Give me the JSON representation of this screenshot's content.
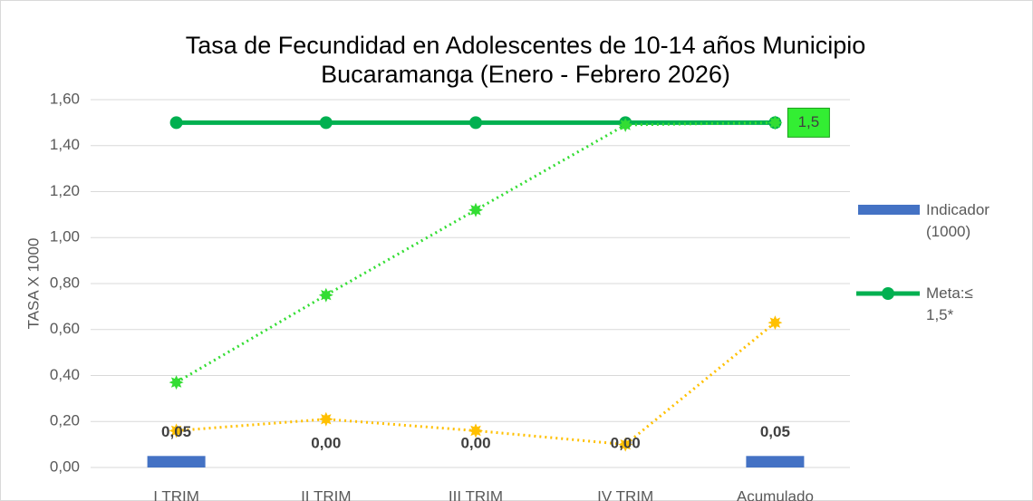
{
  "chart_data": {
    "type": "line",
    "title": "Tasa de Fecundidad en Adolescentes de 10-14 años Municipio Bucaramanga (Enero - Febrero 2026)",
    "y_label": "TASA X 1000",
    "categories": [
      "I TRIM",
      "II TRIM",
      "III TRIM",
      "IV TRIM",
      "Acumulado"
    ],
    "ylim": [
      0,
      1.6
    ],
    "yticks": [
      {
        "value": 0,
        "label": "0,00"
      },
      {
        "value": 0.2,
        "label": "0,20"
      },
      {
        "value": 0.4,
        "label": "0,40"
      },
      {
        "value": 0.6,
        "label": "0,60"
      },
      {
        "value": 0.8,
        "label": "0,80"
      },
      {
        "value": 1.0,
        "label": "1,00"
      },
      {
        "value": 1.2,
        "label": "1,20"
      },
      {
        "value": 1.4,
        "label": "1,40"
      },
      {
        "value": 1.6,
        "label": "1,60"
      }
    ],
    "grid": true,
    "legend": "right",
    "series": [
      {
        "name": "Indicador (1000)",
        "type": "bar",
        "color": "#4472c4",
        "values": [
          0.05,
          0,
          0,
          0,
          0.05
        ],
        "value_labels": [
          "0,05",
          "0,00",
          "0,00",
          "0,00",
          "0,05"
        ]
      },
      {
        "name": "Meta:≤ 1,5*",
        "type": "line",
        "color": "#00b050",
        "marker": "circle",
        "style": "solid",
        "values": [
          1.5,
          1.5,
          1.5,
          1.5,
          1.5
        ],
        "value_labels": [
          null,
          null,
          null,
          null,
          "1,5"
        ]
      },
      {
        "type": "line",
        "color": "#33dd33",
        "marker": "star",
        "style": "dotted",
        "values": [
          0.37,
          0.75,
          1.12,
          1.49,
          1.5
        ]
      },
      {
        "type": "line",
        "color": "#ffc000",
        "marker": "star",
        "style": "dotted",
        "values": [
          0.16,
          0.21,
          0.16,
          0.1,
          0.63
        ]
      }
    ]
  }
}
